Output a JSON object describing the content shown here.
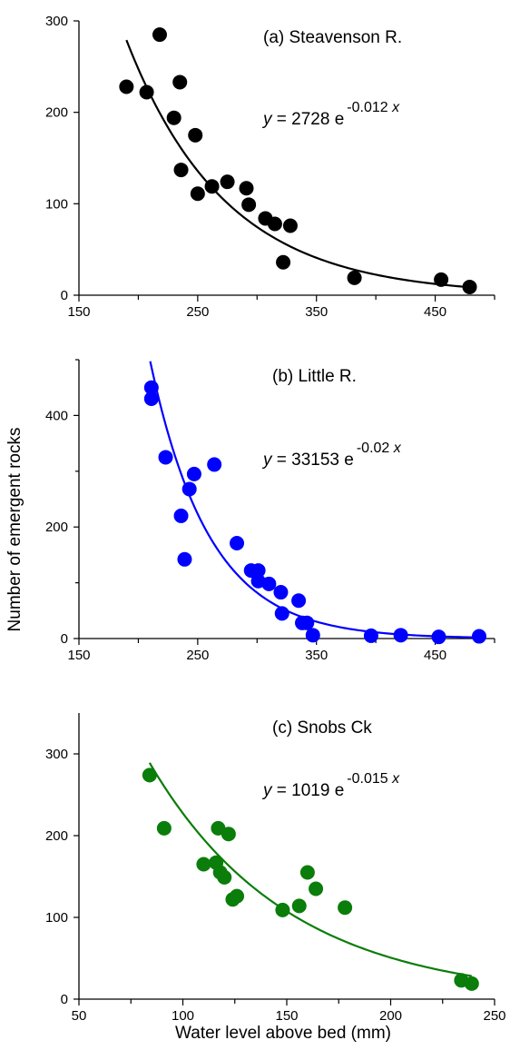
{
  "figure": {
    "ylabel": "Number of emergent rocks",
    "xlabel": "Water level above bed (mm)"
  },
  "chart_data": [
    {
      "type": "scatter",
      "title": "(a) Steavenson R.",
      "equation": {
        "prefix": "y",
        "body": " = 2728 e",
        "exponent": "-0.012 ",
        "var": "x"
      },
      "color": "#000000",
      "xlim": [
        150,
        500
      ],
      "ylim": [
        0,
        300
      ],
      "x_ticks": [
        150,
        250,
        350,
        450
      ],
      "x_minor_ticks": [
        200,
        300,
        400,
        500
      ],
      "y_ticks": [
        0,
        100,
        200,
        300
      ],
      "fit": {
        "a": 2728,
        "b": -0.012,
        "x_range": [
          190,
          480
        ]
      },
      "series": [
        {
          "points": [
            [
              190,
              228
            ],
            [
              207,
              222
            ],
            [
              218,
              285
            ],
            [
              230,
              194
            ],
            [
              235,
              233
            ],
            [
              236,
              137
            ],
            [
              248,
              175
            ],
            [
              250,
              111
            ],
            [
              262,
              119
            ],
            [
              275,
              124
            ],
            [
              291,
              117
            ],
            [
              293,
              99
            ],
            [
              307,
              84
            ],
            [
              315,
              78
            ],
            [
              322,
              36
            ],
            [
              328,
              76
            ],
            [
              382,
              19
            ],
            [
              455,
              17
            ],
            [
              479,
              9
            ]
          ]
        }
      ]
    },
    {
      "type": "scatter",
      "title": "(b) Little R.",
      "equation": {
        "prefix": "y",
        "body": " = 33153 e",
        "exponent": "-0.02 ",
        "var": "x"
      },
      "color": "#0000ff",
      "xlim": [
        150,
        500
      ],
      "ylim": [
        0,
        500
      ],
      "x_ticks": [
        150,
        250,
        350,
        450
      ],
      "x_minor_ticks": [
        200,
        300,
        400,
        500
      ],
      "y_ticks": [
        0,
        200,
        400
      ],
      "y_minor_ticks": [
        100,
        300,
        500
      ],
      "fit": {
        "a": 33153,
        "b": -0.02,
        "x_range": [
          210,
          490
        ]
      },
      "series": [
        {
          "points": [
            [
              211,
              450
            ],
            [
              211,
              430
            ],
            [
              223,
              325
            ],
            [
              236,
              220
            ],
            [
              239,
              142
            ],
            [
              243,
              268
            ],
            [
              247,
              295
            ],
            [
              264,
              312
            ],
            [
              283,
              171
            ],
            [
              295,
              122
            ],
            [
              301,
              122
            ],
            [
              301,
              103
            ],
            [
              310,
              98
            ],
            [
              320,
              83
            ],
            [
              321,
              45
            ],
            [
              335,
              68
            ],
            [
              338,
              28
            ],
            [
              342,
              28
            ],
            [
              347,
              6
            ],
            [
              396,
              5
            ],
            [
              421,
              6
            ],
            [
              453,
              3
            ],
            [
              487,
              4
            ]
          ]
        }
      ]
    },
    {
      "type": "scatter",
      "title": "(c) Snobs Ck",
      "equation": {
        "prefix": "y",
        "body": " = 1019 e",
        "exponent": "-0.015 ",
        "var": "x"
      },
      "color": "#0a7d0a",
      "xlim": [
        50,
        250
      ],
      "ylim": [
        0,
        350
      ],
      "x_ticks": [
        50,
        100,
        150,
        200,
        250
      ],
      "x_minor_ticks": [
        75,
        125,
        175,
        225
      ],
      "y_ticks": [
        0,
        100,
        200,
        300
      ],
      "fit": {
        "a": 1019,
        "b": -0.015,
        "x_range": [
          84,
          239
        ]
      },
      "series": [
        {
          "points": [
            [
              84,
              274
            ],
            [
              91,
              209
            ],
            [
              110,
              165
            ],
            [
              116,
              167
            ],
            [
              117,
              209
            ],
            [
              118,
              155
            ],
            [
              120,
              149
            ],
            [
              122,
              202
            ],
            [
              124,
              122
            ],
            [
              126,
              126
            ],
            [
              148,
              109
            ],
            [
              156,
              114
            ],
            [
              160,
              155
            ],
            [
              164,
              135
            ],
            [
              178,
              112
            ],
            [
              234,
              23
            ],
            [
              239,
              19
            ]
          ]
        }
      ]
    }
  ]
}
